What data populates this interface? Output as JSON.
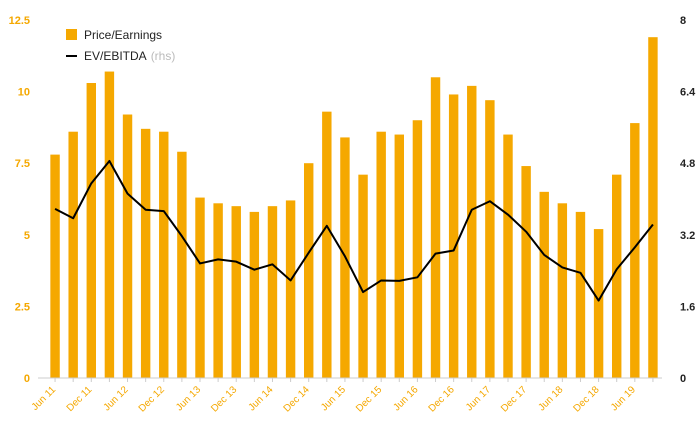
{
  "chart_data": {
    "type": "bar",
    "categories": [
      "Jun 11",
      "",
      "Dec 11",
      "",
      "Jun 12",
      "",
      "Dec 12",
      "",
      "Jun 13",
      "",
      "Dec 13",
      "",
      "Jun 14",
      "",
      "Dec 14",
      "",
      "Jun 15",
      "",
      "Dec 15",
      "",
      "Jun 16",
      "",
      "Dec 16",
      "",
      "Jun 17",
      "",
      "Dec 17",
      "",
      "Jun 18",
      "",
      "Dec 18",
      "",
      "Jun 19",
      ""
    ],
    "x_tick_labels": [
      "Jun 11",
      "Dec 11",
      "Jun 12",
      "Dec 12",
      "Jun 13",
      "Dec 13",
      "Jun 14",
      "Dec 14",
      "Jun 15",
      "Dec 15",
      "Jun 16",
      "Dec 16",
      "Jun 17",
      "Dec 17",
      "Jun 18",
      "Dec 18",
      "Jun 19"
    ],
    "series": [
      {
        "name": "Price/Earnings",
        "type": "bar",
        "axis": "left",
        "color": "#f5a800",
        "values": [
          7.8,
          8.6,
          10.3,
          10.7,
          9.2,
          8.7,
          8.6,
          7.9,
          6.3,
          6.1,
          6.0,
          5.8,
          6.0,
          6.2,
          7.5,
          9.3,
          8.4,
          7.1,
          8.6,
          8.5,
          9.0,
          10.5,
          9.9,
          10.2,
          9.7,
          8.5,
          7.4,
          6.5,
          6.1,
          5.8,
          5.2,
          7.1,
          8.9,
          11.9
        ]
      },
      {
        "name": "EV/EBITDA",
        "name_suffix": "(rhs)",
        "type": "line",
        "axis": "right",
        "color": "#000000",
        "values": [
          3.78,
          3.57,
          4.35,
          4.85,
          4.12,
          3.76,
          3.73,
          3.17,
          2.56,
          2.65,
          2.6,
          2.42,
          2.54,
          2.18,
          2.8,
          3.4,
          2.72,
          1.92,
          2.18,
          2.17,
          2.25,
          2.78,
          2.85,
          3.76,
          3.95,
          3.65,
          3.27,
          2.75,
          2.47,
          2.35,
          1.73,
          2.43,
          2.92,
          3.43
        ]
      }
    ],
    "y_left": {
      "ylim": [
        0,
        12.5
      ],
      "ticks": [
        "0",
        "2.5",
        "5",
        "7.5",
        "10",
        "12.5"
      ],
      "color": "#f5a800"
    },
    "y_right": {
      "ylim": [
        0,
        8
      ],
      "ticks": [
        "0",
        "1.6",
        "3.2",
        "4.8",
        "6.4",
        "8"
      ],
      "color": "#222222"
    },
    "legend": {
      "placement": "top-left"
    },
    "grid": false
  }
}
